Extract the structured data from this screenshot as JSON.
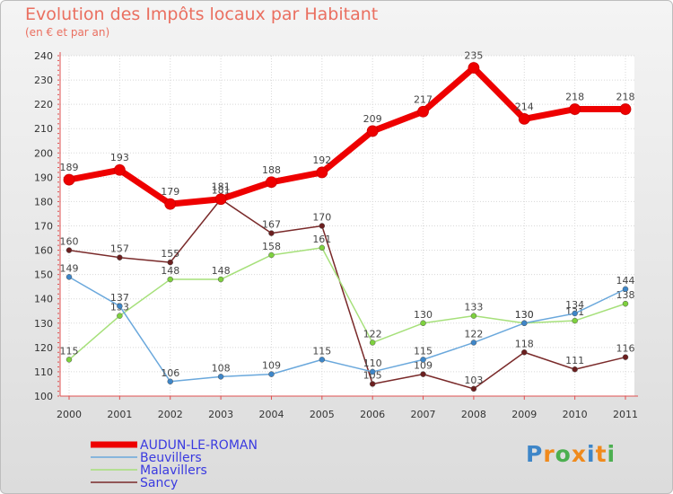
{
  "header": {
    "title": "Evolution des Impôts locaux par Habitant",
    "subtitle": "(en € et par an)"
  },
  "logo": {
    "letters": [
      "P",
      "r",
      "o",
      "x",
      "i",
      "t",
      "i"
    ],
    "colors": [
      "#3e86c8",
      "#f08a1c",
      "#4caf50",
      "#f08a1c",
      "#3e86c8",
      "#f08a1c",
      "#4caf50"
    ]
  },
  "chart_data": {
    "type": "line",
    "title": "Evolution des Impôts locaux par Habitant",
    "subtitle": "(en € et par an)",
    "xlabel": "",
    "ylabel": "",
    "x": [
      "2000",
      "2001",
      "2002",
      "2003",
      "2004",
      "2005",
      "2006",
      "2007",
      "2008",
      "2009",
      "2010",
      "2011"
    ],
    "ylim": [
      100,
      240
    ],
    "yticks": [
      100,
      110,
      120,
      130,
      140,
      150,
      160,
      170,
      180,
      190,
      200,
      210,
      220,
      230,
      240
    ],
    "grid": true,
    "legend_position": "bottom-left",
    "series": [
      {
        "name": "Sancy",
        "color": "#7a2a2a",
        "dot": "#6b1f1f",
        "weight": "thin",
        "values": [
          160,
          157,
          155,
          181,
          167,
          170,
          105,
          109,
          103,
          118,
          111,
          116
        ]
      },
      {
        "name": "Malavillers",
        "color": "#a6e07a",
        "dot": "#7ed13e",
        "weight": "thin",
        "values": [
          115,
          133,
          148,
          148,
          158,
          161,
          122,
          130,
          133,
          130,
          131,
          138
        ]
      },
      {
        "name": "Beuvillers",
        "color": "#6aa8dc",
        "dot": "#3e86c8",
        "weight": "thin",
        "values": [
          149,
          137,
          106,
          108,
          109,
          115,
          110,
          115,
          122,
          130,
          134,
          144
        ]
      },
      {
        "name": "AUDUN-LE-ROMAN",
        "color": "#ee0000",
        "dot": "#ee0000",
        "weight": "thick",
        "values": [
          189,
          193,
          179,
          181,
          188,
          192,
          209,
          217,
          235,
          214,
          218,
          218
        ]
      }
    ],
    "legend": [
      {
        "name": "AUDUN-LE-ROMAN",
        "color": "#ee0000",
        "weight": "thick"
      },
      {
        "name": "Beuvillers",
        "color": "#6aa8dc",
        "weight": "thin"
      },
      {
        "name": "Malavillers",
        "color": "#a6e07a",
        "weight": "thin"
      },
      {
        "name": "Sancy",
        "color": "#7a2a2a",
        "weight": "thin"
      }
    ],
    "legend_text_color": "#3a3ae0"
  }
}
